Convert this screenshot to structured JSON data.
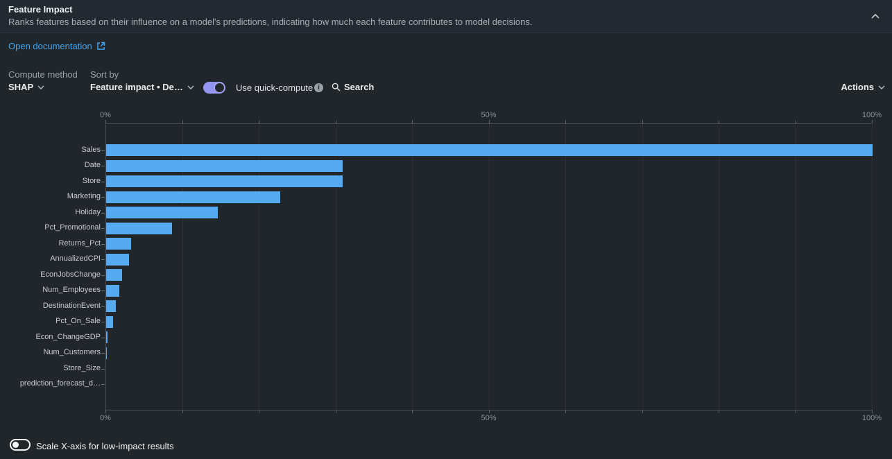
{
  "panel": {
    "title": "Feature Impact",
    "description": "Ranks features based on their influence on a model's predictions, indicating how much each feature contributes to model decisions.",
    "doc_link_label": "Open documentation"
  },
  "controls": {
    "compute_method_label": "Compute method",
    "compute_method_value": "SHAP",
    "sort_by_label": "Sort by",
    "sort_by_value": "Feature impact • De…",
    "quick_compute_label": "Use quick-compute",
    "quick_compute_enabled": true,
    "search_label": "Search",
    "actions_label": "Actions"
  },
  "chart_data": {
    "type": "bar",
    "orientation": "horizontal",
    "title": "Feature Impact",
    "xlabel": "",
    "ylabel": "",
    "categories": [
      "Sales",
      "Date",
      "Store",
      "Marketing",
      "Holiday",
      "Pct_Promotional",
      "Returns_Pct",
      "AnnualizedCPI",
      "EconJobsChange",
      "Num_Employees",
      "DestinationEvent",
      "Pct_On_Sale",
      "Econ_ChangeGDP",
      "Num_Customers",
      "Store_Size",
      "prediction_forecast_d…"
    ],
    "values": [
      100,
      30.9,
      30.9,
      22.7,
      14.6,
      8.6,
      3.3,
      3.0,
      2.1,
      1.7,
      1.3,
      0.9,
      0.2,
      0.1,
      0,
      0
    ],
    "value_unit": "%",
    "xlim": [
      0,
      100
    ],
    "x_tick_values": [
      0,
      50,
      100
    ],
    "x_tick_labels": [
      "0%",
      "50%",
      "100%"
    ],
    "gridline_step": 10,
    "grid": true,
    "axis_label_position": "top-and-bottom",
    "bar_color": "#55aaf2"
  },
  "footer": {
    "scale_toggle_label": "Scale X-axis for low-impact results",
    "scale_toggle_enabled": false
  },
  "colors": {
    "background": "#21262b",
    "bar": "#55aaf2",
    "link": "#3ea6f2",
    "toggle_on": "#9395ef",
    "text_primary": "#e9ecee",
    "text_muted": "#9aa1a8"
  }
}
